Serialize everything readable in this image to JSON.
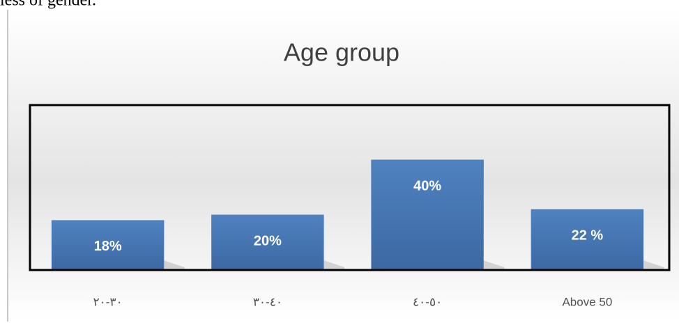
{
  "page_text": "less of gender.",
  "chart_data": {
    "type": "bar",
    "title": "Age group",
    "categories": [
      "٣٠-٢٠",
      "٤٠-٣٠",
      "٥٠-٤٠",
      "Above 50"
    ],
    "values": [
      18,
      20,
      40,
      22
    ],
    "value_labels": [
      "18%",
      "20%",
      "40%",
      "22 %"
    ],
    "color": "#4a7bb7",
    "ylim": [
      0,
      60
    ]
  }
}
